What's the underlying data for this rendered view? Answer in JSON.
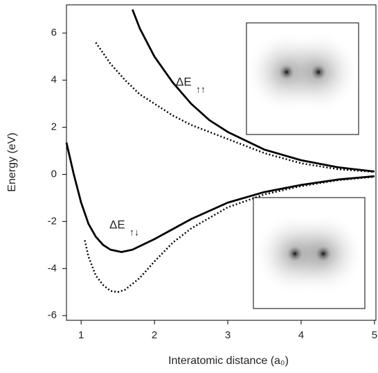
{
  "chart_data": {
    "type": "line",
    "xlabel": "Interatomic distance (a₀)",
    "ylabel": "Energy (eV)",
    "xlim": [
      0.8,
      5.02
    ],
    "ylim": [
      -6.2,
      7.2
    ],
    "xticks": [
      1,
      2,
      3,
      4,
      5
    ],
    "yticks": [
      -6,
      -4,
      -2,
      0,
      2,
      4,
      6
    ],
    "annotations": [
      {
        "text": "ΔE",
        "subscript": "↑↑"
      },
      {
        "text": "ΔE",
        "subscript": "↑↓"
      }
    ],
    "series": [
      {
        "color": "#000000",
        "style": "solid",
        "x": [
          1.7,
          1.8,
          2.0,
          2.25,
          2.5,
          2.75,
          3.0,
          3.5,
          4.0,
          4.5,
          5.0
        ],
        "values": [
          7.0,
          6.2,
          5.0,
          3.9,
          3.0,
          2.3,
          1.8,
          1.05,
          0.6,
          0.3,
          0.12
        ]
      },
      {
        "color": "#000000",
        "style": "dotted",
        "x": [
          1.2,
          1.4,
          1.6,
          1.8,
          2.0,
          2.25,
          2.5,
          2.75,
          3.0,
          3.5,
          4.0,
          4.5,
          5.0
        ],
        "values": [
          5.6,
          4.7,
          4.0,
          3.4,
          3.0,
          2.5,
          2.1,
          1.8,
          1.5,
          0.9,
          0.47,
          0.22,
          0.1
        ]
      },
      {
        "color": "#000000",
        "style": "solid",
        "x": [
          0.8,
          0.9,
          1.0,
          1.1,
          1.2,
          1.3,
          1.4,
          1.55,
          1.7,
          2.0,
          2.5,
          3.0,
          3.5,
          4.0,
          4.5,
          5.0
        ],
        "values": [
          1.35,
          0.0,
          -1.2,
          -2.1,
          -2.65,
          -3.0,
          -3.2,
          -3.3,
          -3.2,
          -2.75,
          -1.9,
          -1.2,
          -0.75,
          -0.45,
          -0.22,
          -0.08
        ]
      },
      {
        "color": "#000000",
        "style": "dotted",
        "x": [
          1.05,
          1.1,
          1.2,
          1.3,
          1.4,
          1.5,
          1.6,
          1.8,
          2.0,
          2.25,
          2.5,
          3.0,
          3.5,
          4.0,
          4.5,
          5.0
        ],
        "values": [
          -2.8,
          -3.5,
          -4.3,
          -4.7,
          -4.95,
          -5.0,
          -4.9,
          -4.4,
          -3.7,
          -2.9,
          -2.3,
          -1.4,
          -0.85,
          -0.5,
          -0.25,
          -0.1
        ]
      }
    ]
  }
}
